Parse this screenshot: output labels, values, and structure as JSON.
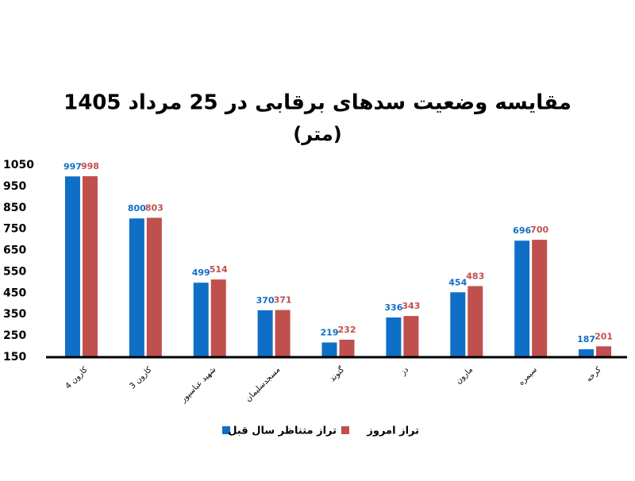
{
  "chart_data": {
    "type": "bar",
    "title": "مقایسه وضعیت سدهای برقابی در 25 مرداد 1405",
    "subtitle": "(متر)",
    "categories": [
      "کارون 4",
      "کارون 3",
      "شهید عباسپور",
      "مسجدسلیمان",
      "گتوند",
      "دز",
      "مارون",
      "سیمره",
      "کرخه"
    ],
    "series": [
      {
        "name": "تراز متناظر سال قبل",
        "color": "#0f6fc6",
        "values": [
          997,
          800,
          499,
          370,
          219,
          336,
          454,
          696,
          187
        ]
      },
      {
        "name": "تراز امروز",
        "color": "#c0504d",
        "values": [
          998,
          803,
          514,
          371,
          232,
          343,
          483,
          700,
          201
        ]
      }
    ],
    "ylim": [
      150,
      1050
    ],
    "yticks": [
      150,
      250,
      350,
      450,
      550,
      650,
      750,
      850,
      950,
      1050
    ]
  }
}
